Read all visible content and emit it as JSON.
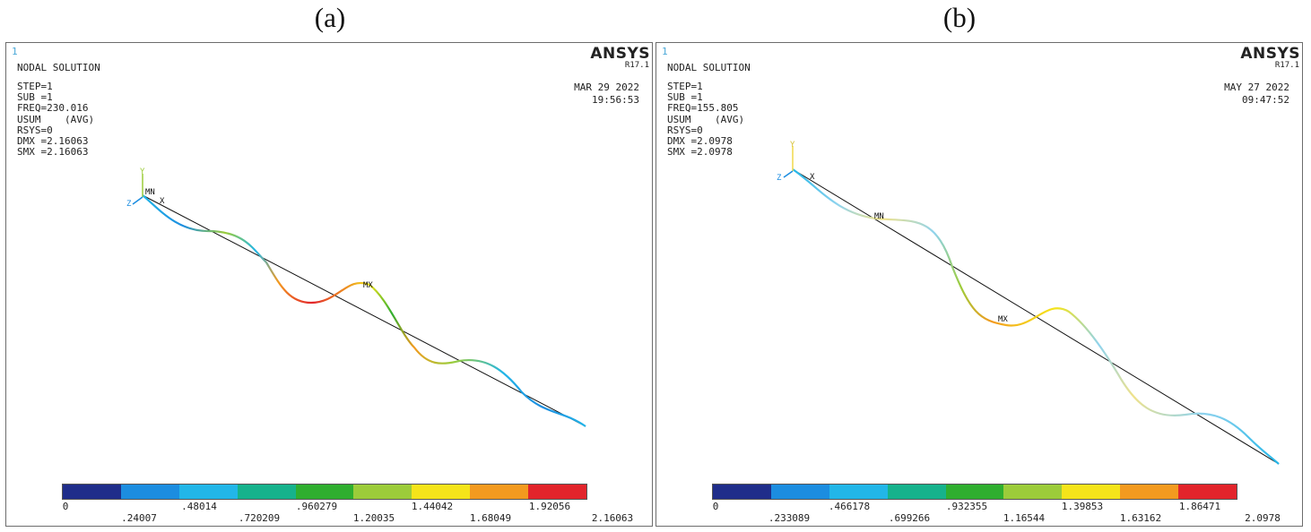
{
  "captions": {
    "a": "(a)",
    "b": "(b)"
  },
  "legend_colors": [
    "#1f2d8a",
    "#1c8de0",
    "#22b6e8",
    "#16b28c",
    "#2fae2f",
    "#9ccc3a",
    "#f5e41a",
    "#f39a1f",
    "#e2242b"
  ],
  "panels": [
    {
      "number": "1",
      "title": "NODAL SOLUTION",
      "brand": "ANSYS",
      "version": "R17.1",
      "info": [
        "STEP=1",
        "SUB =1",
        "FREQ=230.016",
        "USUM    (AVG)",
        "RSYS=0",
        "DMX =2.16063",
        "SMX =2.16063"
      ],
      "date": "MAR 29 2022",
      "time": "19:56:53",
      "labels": {
        "min": "MN",
        "max": "MX",
        "y_axis": "Y",
        "x_axis": "X",
        "z_axis": "Z"
      },
      "legend_ticks_top": [
        "0",
        ".48014",
        ".960279",
        "1.44042",
        "1.92056"
      ],
      "legend_ticks_bottom": [
        ".24007",
        ".720209",
        "1.20035",
        "1.68049",
        "2.16063"
      ]
    },
    {
      "number": "1",
      "title": "NODAL SOLUTION",
      "brand": "ANSYS",
      "version": "R17.1",
      "info": [
        "STEP=1",
        "SUB =1",
        "FREQ=155.805",
        "USUM    (AVG)",
        "RSYS=0",
        "DMX =2.0978",
        "SMX =2.0978"
      ],
      "date": "MAY 27 2022",
      "time": "09:47:52",
      "labels": {
        "min": "MN",
        "max": "MX",
        "y_axis": "Y",
        "x_axis": "X",
        "z_axis": "Z"
      },
      "legend_ticks_top": [
        "0",
        ".466178",
        ".932355",
        "1.39853",
        "1.86471"
      ],
      "legend_ticks_bottom": [
        ".233089",
        ".699266",
        "1.16544",
        "1.63162",
        "2.0978"
      ]
    }
  ]
}
